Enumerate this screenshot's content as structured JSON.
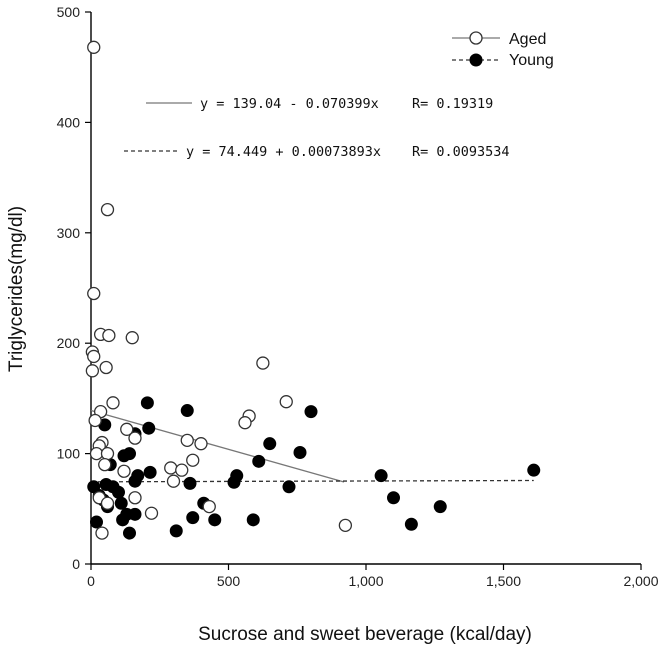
{
  "chart_data": {
    "type": "scatter",
    "xlabel": "Sucrose and sweet beverage (kcal/day)",
    "ylabel": "Triglycerides(mg/dl)",
    "xlim": [
      0,
      2000
    ],
    "ylim": [
      0,
      500
    ],
    "x_ticks": [
      0,
      500,
      1000,
      1500,
      2000
    ],
    "x_tick_labels": [
      "0",
      "500",
      "1,000",
      "1,500",
      "2,000"
    ],
    "y_ticks": [
      0,
      100,
      200,
      300,
      400,
      500
    ],
    "y_tick_labels": [
      "0",
      "100",
      "200",
      "300",
      "400",
      "500"
    ],
    "grid": false,
    "legend_position": "top-right",
    "series": [
      {
        "name": "Aged",
        "marker": "open-circle",
        "line_style": "solid",
        "equation": "y = 139.04 - 0.070399x",
        "r_label": "R= 0.19319",
        "fit": {
          "intercept": 139.04,
          "slope": -0.070399,
          "x_range": [
            0,
            920
          ]
        },
        "points": [
          [
            10,
            468
          ],
          [
            10,
            245
          ],
          [
            60,
            321
          ],
          [
            35,
            208
          ],
          [
            65,
            207
          ],
          [
            5,
            192
          ],
          [
            10,
            188
          ],
          [
            55,
            178
          ],
          [
            5,
            175
          ],
          [
            150,
            205
          ],
          [
            625,
            182
          ],
          [
            35,
            138
          ],
          [
            80,
            146
          ],
          [
            15,
            130
          ],
          [
            130,
            122
          ],
          [
            160,
            114
          ],
          [
            350,
            112
          ],
          [
            400,
            109
          ],
          [
            575,
            134
          ],
          [
            560,
            128
          ],
          [
            710,
            147
          ],
          [
            40,
            110
          ],
          [
            30,
            107
          ],
          [
            20,
            100
          ],
          [
            60,
            100
          ],
          [
            50,
            90
          ],
          [
            370,
            94
          ],
          [
            290,
            87
          ],
          [
            330,
            85
          ],
          [
            120,
            84
          ],
          [
            300,
            75
          ],
          [
            160,
            60
          ],
          [
            220,
            46
          ],
          [
            430,
            52
          ],
          [
            40,
            28
          ],
          [
            30,
            60
          ],
          [
            60,
            55
          ],
          [
            925,
            35
          ]
        ]
      },
      {
        "name": "Young",
        "marker": "filled-circle",
        "line_style": "dashed",
        "equation": "y = 74.449 + 0.00073893x",
        "r_label": "R= 0.0093534",
        "fit": {
          "intercept": 74.449,
          "slope": 0.00073893,
          "x_range": [
            0,
            1610
          ]
        },
        "points": [
          [
            205,
            146
          ],
          [
            350,
            139
          ],
          [
            800,
            138
          ],
          [
            50,
            126
          ],
          [
            120,
            98
          ],
          [
            140,
            100
          ],
          [
            160,
            118
          ],
          [
            210,
            123
          ],
          [
            650,
            109
          ],
          [
            610,
            93
          ],
          [
            760,
            101
          ],
          [
            215,
            83
          ],
          [
            70,
            90
          ],
          [
            80,
            70
          ],
          [
            100,
            65
          ],
          [
            55,
            72
          ],
          [
            30,
            62
          ],
          [
            10,
            70
          ],
          [
            45,
            58
          ],
          [
            60,
            52
          ],
          [
            110,
            55
          ],
          [
            130,
            45
          ],
          [
            160,
            75
          ],
          [
            170,
            80
          ],
          [
            360,
            73
          ],
          [
            530,
            80
          ],
          [
            520,
            74
          ],
          [
            1055,
            80
          ],
          [
            1100,
            60
          ],
          [
            1610,
            85
          ],
          [
            720,
            70
          ],
          [
            20,
            38
          ],
          [
            115,
            40
          ],
          [
            140,
            28
          ],
          [
            160,
            45
          ],
          [
            310,
            30
          ],
          [
            370,
            42
          ],
          [
            410,
            55
          ],
          [
            450,
            40
          ],
          [
            590,
            40
          ],
          [
            1165,
            36
          ],
          [
            1270,
            52
          ]
        ]
      }
    ]
  }
}
